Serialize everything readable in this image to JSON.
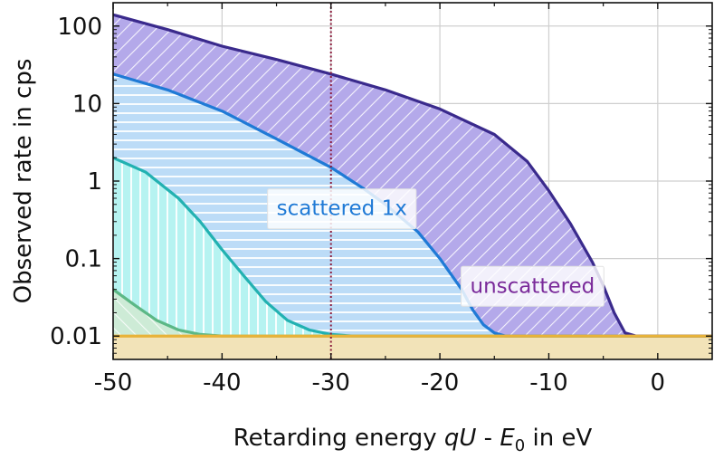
{
  "chart_data": {
    "type": "area",
    "xlabel": {
      "prefix": "Retarding energy ",
      "var1": "qU",
      "mid": " - ",
      "var2": "E",
      "sub": "0",
      "suffix": " in eV"
    },
    "ylabel": "Observed rate in cps",
    "xlim": [
      -50,
      5
    ],
    "ylim": [
      0.005,
      200
    ],
    "yscale": "log",
    "grid": true,
    "x_ticks": [
      -50,
      -40,
      -30,
      -20,
      -10,
      0
    ],
    "x_tick_labels": [
      "-50",
      "-40",
      "-30",
      "-20",
      "-10",
      "0"
    ],
    "y_ticks": [
      0.01,
      0.1,
      1,
      10,
      100
    ],
    "y_tick_labels": [
      "0.01",
      "0.1",
      "1",
      "10",
      "100"
    ],
    "vline": {
      "x": -30,
      "color": "#8b1a3a"
    },
    "background": {
      "value": 0.01,
      "color": "#f2e3b8",
      "line_color": "#e8b33a"
    },
    "series": [
      {
        "key": "unscattered",
        "color": "#3a2a8c",
        "fill": "#b4a9ea",
        "hatch": "diagonal",
        "points": [
          [
            -50,
            140
          ],
          [
            -45,
            90
          ],
          [
            -40,
            55
          ],
          [
            -35,
            37
          ],
          [
            -30,
            24
          ],
          [
            -25,
            15
          ],
          [
            -20,
            8.5
          ],
          [
            -15,
            4
          ],
          [
            -12,
            1.8
          ],
          [
            -10,
            0.75
          ],
          [
            -8,
            0.28
          ],
          [
            -6,
            0.09
          ],
          [
            -5,
            0.045
          ],
          [
            -4,
            0.02
          ],
          [
            -3,
            0.011
          ],
          [
            -2,
            0.01
          ],
          [
            5,
            0.01
          ]
        ]
      },
      {
        "key": "scattered1",
        "color": "#1f7ad6",
        "fill": "#bcdcf7",
        "hatch": "horizontal",
        "points": [
          [
            -50,
            24
          ],
          [
            -45,
            15
          ],
          [
            -40,
            8
          ],
          [
            -35,
            3.5
          ],
          [
            -30,
            1.5
          ],
          [
            -27,
            0.8
          ],
          [
            -25,
            0.5
          ],
          [
            -22,
            0.22
          ],
          [
            -20,
            0.1
          ],
          [
            -18,
            0.04
          ],
          [
            -17,
            0.022
          ],
          [
            -16,
            0.014
          ],
          [
            -15,
            0.011
          ],
          [
            -14,
            0.01
          ],
          [
            5,
            0.01
          ]
        ]
      },
      {
        "key": "scattered2",
        "color": "#22b1b1",
        "fill": "#b6f3f1",
        "hatch": "vertical",
        "points": [
          [
            -50,
            2
          ],
          [
            -47,
            1.3
          ],
          [
            -44,
            0.6
          ],
          [
            -42,
            0.3
          ],
          [
            -40,
            0.13
          ],
          [
            -38,
            0.06
          ],
          [
            -36,
            0.028
          ],
          [
            -34,
            0.016
          ],
          [
            -32,
            0.012
          ],
          [
            -30,
            0.0105
          ],
          [
            -28,
            0.01
          ],
          [
            5,
            0.01
          ]
        ]
      },
      {
        "key": "scattered3",
        "color": "#5cb886",
        "fill": "#cdebd6",
        "hatch": "diagonal-back",
        "points": [
          [
            -50,
            0.04
          ],
          [
            -48,
            0.025
          ],
          [
            -46,
            0.016
          ],
          [
            -44,
            0.012
          ],
          [
            -42,
            0.0105
          ],
          [
            -40,
            0.01
          ],
          [
            5,
            0.01
          ]
        ]
      }
    ],
    "annotations": [
      {
        "key": "scattered",
        "text": "scattered 1x",
        "color": "#1f7ad6",
        "x": -29,
        "y": 0.45
      },
      {
        "key": "unscattered",
        "text": "unscattered",
        "color": "#7a2a9a",
        "x": -11.5,
        "y": 0.045
      }
    ]
  }
}
